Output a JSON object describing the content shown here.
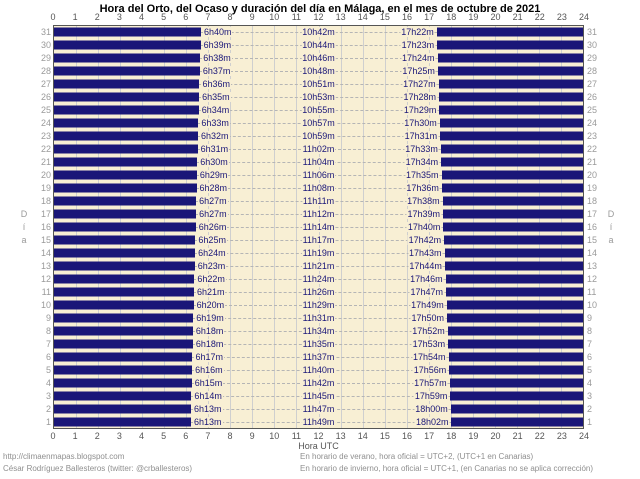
{
  "title": "Hora del Orto, del Ocaso y duración del día en Málaga, en el mes de octubre de 2021",
  "chart_data": {
    "type": "bar",
    "orientation": "horizontal",
    "description": "Per-day horizontal bars: dark bars cover night hours (00h to sunrise, sunset to 24h); light gap is daylight. Labels show sunrise time (orto), day length (duración) and sunset time (ocaso).",
    "title": "Hora del Orto, del Ocaso y duración del día en Málaga, en el mes de octubre de 2021",
    "xlabel": "Hora UTC",
    "ylabel": "Día",
    "xlim": [
      0,
      24
    ],
    "ylim": [
      1,
      31
    ],
    "x_ticks": [
      0,
      1,
      2,
      3,
      4,
      5,
      6,
      7,
      8,
      9,
      10,
      11,
      12,
      13,
      14,
      15,
      16,
      17,
      18,
      19,
      20,
      21,
      22,
      23,
      24
    ],
    "grid": true,
    "rows": [
      {
        "day": 31,
        "orto": "6h40m",
        "duracion": "10h42m",
        "ocaso": "17h22m"
      },
      {
        "day": 30,
        "orto": "6h39m",
        "duracion": "10h44m",
        "ocaso": "17h23m"
      },
      {
        "day": 29,
        "orto": "6h38m",
        "duracion": "10h46m",
        "ocaso": "17h24m"
      },
      {
        "day": 28,
        "orto": "6h37m",
        "duracion": "10h48m",
        "ocaso": "17h25m"
      },
      {
        "day": 27,
        "orto": "6h36m",
        "duracion": "10h51m",
        "ocaso": "17h27m"
      },
      {
        "day": 26,
        "orto": "6h35m",
        "duracion": "10h53m",
        "ocaso": "17h28m"
      },
      {
        "day": 25,
        "orto": "6h34m",
        "duracion": "10h55m",
        "ocaso": "17h29m"
      },
      {
        "day": 24,
        "orto": "6h33m",
        "duracion": "10h57m",
        "ocaso": "17h30m"
      },
      {
        "day": 23,
        "orto": "6h32m",
        "duracion": "10h59m",
        "ocaso": "17h31m"
      },
      {
        "day": 22,
        "orto": "6h31m",
        "duracion": "11h02m",
        "ocaso": "17h33m"
      },
      {
        "day": 21,
        "orto": "6h30m",
        "duracion": "11h04m",
        "ocaso": "17h34m"
      },
      {
        "day": 20,
        "orto": "6h29m",
        "duracion": "11h06m",
        "ocaso": "17h35m"
      },
      {
        "day": 19,
        "orto": "6h28m",
        "duracion": "11h08m",
        "ocaso": "17h36m"
      },
      {
        "day": 18,
        "orto": "6h27m",
        "duracion": "11h11m",
        "ocaso": "17h38m"
      },
      {
        "day": 17,
        "orto": "6h27m",
        "duracion": "11h12m",
        "ocaso": "17h39m"
      },
      {
        "day": 16,
        "orto": "6h26m",
        "duracion": "11h14m",
        "ocaso": "17h40m"
      },
      {
        "day": 15,
        "orto": "6h25m",
        "duracion": "11h17m",
        "ocaso": "17h42m"
      },
      {
        "day": 14,
        "orto": "6h24m",
        "duracion": "11h19m",
        "ocaso": "17h43m"
      },
      {
        "day": 13,
        "orto": "6h23m",
        "duracion": "11h21m",
        "ocaso": "17h44m"
      },
      {
        "day": 12,
        "orto": "6h22m",
        "duracion": "11h24m",
        "ocaso": "17h46m"
      },
      {
        "day": 11,
        "orto": "6h21m",
        "duracion": "11h26m",
        "ocaso": "17h47m"
      },
      {
        "day": 10,
        "orto": "6h20m",
        "duracion": "11h29m",
        "ocaso": "17h49m"
      },
      {
        "day": 9,
        "orto": "6h19m",
        "duracion": "11h31m",
        "ocaso": "17h50m"
      },
      {
        "day": 8,
        "orto": "6h18m",
        "duracion": "11h34m",
        "ocaso": "17h52m"
      },
      {
        "day": 7,
        "orto": "6h18m",
        "duracion": "11h35m",
        "ocaso": "17h53m"
      },
      {
        "day": 6,
        "orto": "6h17m",
        "duracion": "11h37m",
        "ocaso": "17h54m"
      },
      {
        "day": 5,
        "orto": "6h16m",
        "duracion": "11h40m",
        "ocaso": "17h56m"
      },
      {
        "day": 4,
        "orto": "6h15m",
        "duracion": "11h42m",
        "ocaso": "17h57m"
      },
      {
        "day": 3,
        "orto": "6h14m",
        "duracion": "11h45m",
        "ocaso": "17h59m"
      },
      {
        "day": 2,
        "orto": "6h13m",
        "duracion": "11h47m",
        "ocaso": "18h00m"
      },
      {
        "day": 1,
        "orto": "6h13m",
        "duracion": "11h49m",
        "ocaso": "18h02m"
      }
    ]
  },
  "footer": {
    "left_lines": [
      "http://climaenmapas.blogspot.com",
      "César Rodríguez Ballesteros (twitter: @crballesteros)"
    ],
    "right_lines": [
      "En horario de verano, hora oficial = UTC+2, (UTC+1 en Canarias)",
      "En horario de invierno, hora oficial = UTC+1, (en Canarias no se aplica corrección)"
    ]
  },
  "colors": {
    "bar": "#1a1678",
    "plot_background": "#f8efd4",
    "grid": "#cfcfcf",
    "dashed_leader": "#b5b5b5",
    "day_number": "#9a9a9a",
    "axis_tick": "#555555",
    "footer_text": "#8f8f8f"
  }
}
